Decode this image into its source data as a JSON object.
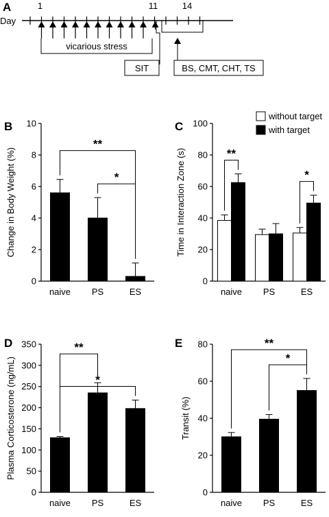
{
  "timeline": {
    "panel": "A",
    "axis_label": "Day",
    "day_labels": [
      {
        "day": 1,
        "text": "1"
      },
      {
        "day": 11,
        "text": "11"
      },
      {
        "day": 14,
        "text": "14"
      }
    ],
    "tick_days": [
      0,
      1,
      2,
      3,
      4,
      5,
      6,
      7,
      8,
      9,
      10,
      11,
      12,
      13,
      14,
      15
    ],
    "stress_arrow_days": [
      1,
      2,
      3,
      4,
      5,
      6,
      7,
      8,
      9,
      10
    ],
    "after_arrow_day": 11,
    "boxes": {
      "stress": "vicarious stress",
      "sit": "SIT",
      "tests": "BS, CMT, CHT, TS"
    }
  },
  "chart_data": [
    {
      "id": "B",
      "type": "bar",
      "panel": "B",
      "categories": [
        "naive",
        "PS",
        "ES"
      ],
      "series": [
        {
          "values": [
            5.6,
            4.0,
            0.3
          ],
          "errors": [
            0.85,
            1.3,
            0.85
          ],
          "color": "#000000"
        }
      ],
      "ylabel": "Change in Body Weight (%)",
      "ylim": [
        0,
        10
      ],
      "yticks": [
        0,
        2,
        4,
        6,
        8,
        10
      ],
      "significance": [
        {
          "from": 0,
          "to": 2,
          "label": "**"
        },
        {
          "from": 1,
          "to": 2,
          "label": "*"
        }
      ]
    },
    {
      "id": "C",
      "type": "bar",
      "panel": "C",
      "categories": [
        "naive",
        "PS",
        "ES"
      ],
      "series": [
        {
          "name": "without target",
          "values": [
            38.5,
            29.5,
            30.5
          ],
          "errors": [
            3.5,
            3.5,
            3.5
          ],
          "color": "#ffffff"
        },
        {
          "name": "with target",
          "values": [
            62.5,
            30.0,
            49.5
          ],
          "errors": [
            5.5,
            6.5,
            5.0
          ],
          "color": "#000000"
        }
      ],
      "ylabel": "Time in Interaction Zone (s)",
      "ylim": [
        0,
        100
      ],
      "yticks": [
        0,
        20,
        40,
        60,
        80,
        100
      ],
      "legend_position": "top-right",
      "significance": [
        {
          "category": 0,
          "label": "**"
        },
        {
          "category": 2,
          "label": "*"
        }
      ]
    },
    {
      "id": "D",
      "type": "bar",
      "panel": "D",
      "categories": [
        "naive",
        "PS",
        "ES"
      ],
      "series": [
        {
          "values": [
            129,
            235,
            198
          ],
          "errors": [
            3,
            24,
            20
          ],
          "color": "#000000"
        }
      ],
      "ylabel": "Plasma Corticosterone (ng/mL)",
      "ylim": [
        0,
        350
      ],
      "yticks": [
        0,
        50,
        100,
        150,
        200,
        250,
        300,
        350
      ],
      "significance": [
        {
          "from": 0,
          "to": 1,
          "label": "**"
        },
        {
          "from": 0,
          "to": 2,
          "label": "*"
        }
      ]
    },
    {
      "id": "E",
      "type": "bar",
      "panel": "E",
      "categories": [
        "naive",
        "PS",
        "ES"
      ],
      "series": [
        {
          "values": [
            30,
            39.5,
            55
          ],
          "errors": [
            2.3,
            2.5,
            6.5
          ],
          "color": "#000000"
        }
      ],
      "ylabel": "Transit (%)",
      "ylim": [
        0,
        80
      ],
      "yticks": [
        0,
        20,
        40,
        60,
        80
      ],
      "significance": [
        {
          "from": 0,
          "to": 2,
          "label": "**"
        },
        {
          "from": 1,
          "to": 2,
          "label": "*"
        }
      ]
    }
  ]
}
